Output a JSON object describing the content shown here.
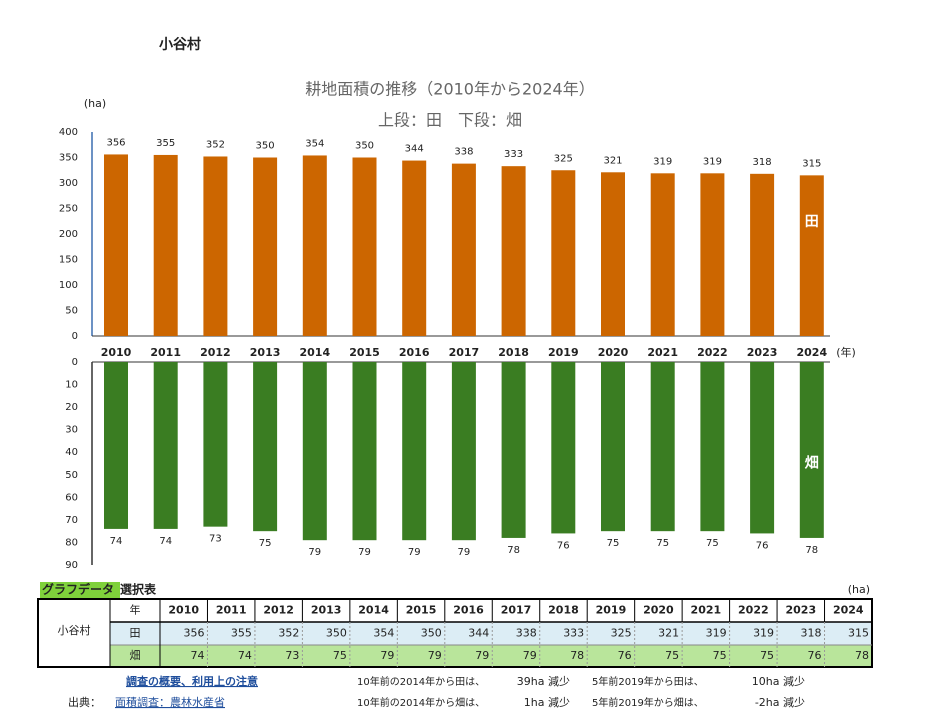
{
  "village": "小谷村",
  "chart_data": [
    {
      "type": "bar",
      "title": "耕地面積の推移（2010年から2024年）",
      "subtitle": "上段：田　下段：畑",
      "y_label": "(ha)",
      "x_label": "(年)",
      "categories": [
        "2010",
        "2011",
        "2012",
        "2013",
        "2014",
        "2015",
        "2016",
        "2017",
        "2018",
        "2019",
        "2020",
        "2021",
        "2022",
        "2023",
        "2024"
      ],
      "series": [
        {
          "name": "田",
          "color": "#cc6600",
          "values": [
            356,
            355,
            352,
            350,
            354,
            350,
            344,
            338,
            333,
            325,
            321,
            319,
            319,
            318,
            315
          ]
        }
      ],
      "ylim": [
        0,
        400
      ],
      "yticks": [
        0,
        50,
        100,
        150,
        200,
        250,
        300,
        350,
        400
      ],
      "grid": false,
      "inverted": false
    },
    {
      "type": "bar",
      "series": [
        {
          "name": "畑",
          "color": "#3a7d22",
          "values": [
            74,
            74,
            73,
            75,
            79,
            79,
            79,
            79,
            78,
            76,
            75,
            75,
            75,
            76,
            78
          ]
        }
      ],
      "ylim": [
        0,
        90
      ],
      "yticks": [
        0,
        10,
        20,
        30,
        40,
        50,
        60,
        70,
        80,
        90
      ],
      "grid": false,
      "inverted": true
    }
  ],
  "table": {
    "title_highlight": "グラフデータ",
    "title_rest": "選択表",
    "unit": "(ha)",
    "header_label": "年"
  },
  "notes": {
    "guide_link": "調査の概要、利用上の注意",
    "source_label": "出典：",
    "source_link": "面積調査：農林水産省",
    "summaries": [
      {
        "label": "10年前の2014年から田は、",
        "change": "39ha 減少"
      },
      {
        "label": "5年前2019年から田は、",
        "change": "10ha 減少"
      },
      {
        "label": "10年前の2014年から畑は、",
        "change": "1ha 減少"
      },
      {
        "label": "5年前2019年から畑は、",
        "change": "-2ha 減少"
      }
    ]
  }
}
